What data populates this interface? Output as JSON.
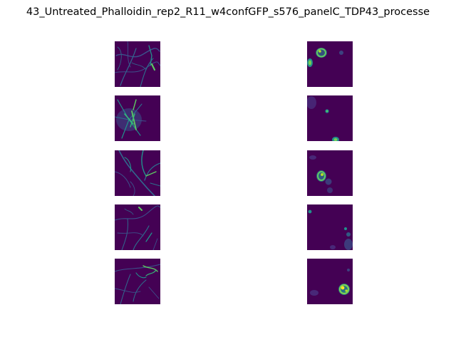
{
  "figure": {
    "title": "43_Untreated_Phalloidin_rep2_R11_w4confGFP_s576_panelC_TDP43_processe",
    "colormap": "viridis",
    "background": "#ffffff",
    "colors": {
      "dark": "#440154",
      "mid": "#3b528b",
      "teal": "#21918c",
      "green": "#5ec962",
      "yellow": "#fde725"
    },
    "columns": [
      {
        "content": "phalloidin fibrous network",
        "rows": 5
      },
      {
        "content": "TDP43 nuclear puncta",
        "rows": 5
      }
    ]
  }
}
